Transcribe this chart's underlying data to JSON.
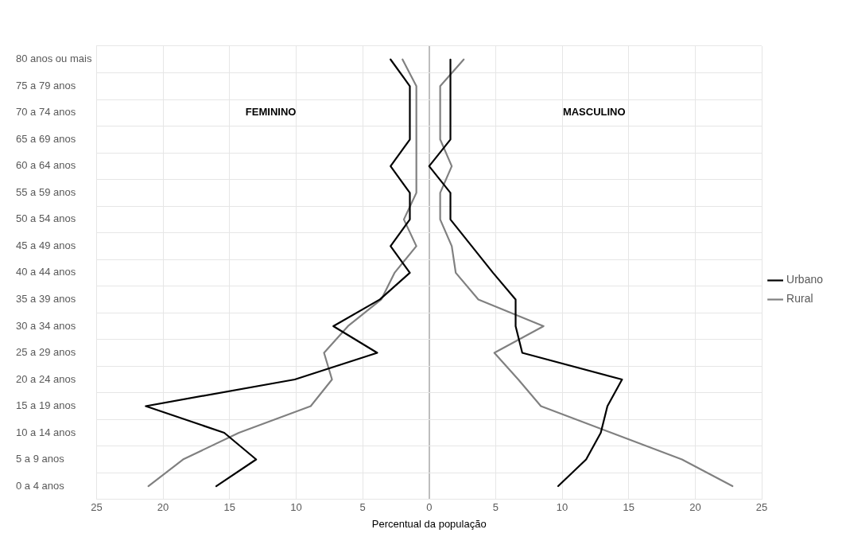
{
  "chart_data": {
    "type": "line",
    "orientation": "horizontal",
    "xlabel": "Percentual da população",
    "categories": [
      "80 anos ou mais",
      "75 a 79 anos",
      "70 a 74 anos",
      "65 a 69 anos",
      "60 a 64 anos",
      "55 a 59 anos",
      "50 a 54 anos",
      "45 a 49 anos",
      "40 a 44 anos",
      "35 a 39 anos",
      "30 a 34 anos",
      "25 a 29 anos",
      "20 a 24 anos",
      "15 a 19 anos",
      "10 a 14 anos",
      "5 a 9 anos",
      "0 a 4 anos"
    ],
    "series": [
      {
        "color": "#000000",
        "values": [
          -2.9,
          -1.45,
          -1.45,
          -1.45,
          -2.9,
          -1.45,
          -1.45,
          -2.9,
          -1.45,
          -3.7,
          -7.2,
          -3.9,
          -10.1,
          -21.3,
          -15.4,
          -13.0,
          -16.0
        ]
      },
      {
        "color": "#808080",
        "values": [
          -2.0,
          -0.96,
          -0.96,
          -0.96,
          -0.96,
          -0.96,
          -1.9,
          -0.96,
          -2.6,
          -3.6,
          -6.1,
          -7.9,
          -7.3,
          -8.9,
          -14.3,
          -18.5,
          -21.1
        ]
      },
      {
        "name": "Urbano",
        "color": "#000000",
        "values": [
          1.6,
          1.6,
          1.6,
          1.6,
          0,
          1.6,
          1.6,
          3.2,
          4.8,
          6.5,
          6.5,
          7.0,
          14.5,
          13.4,
          12.9,
          11.8,
          9.7
        ]
      },
      {
        "name": "Rural",
        "color": "#808080",
        "values": [
          2.6,
          0.83,
          0.83,
          0.83,
          1.7,
          0.83,
          0.83,
          1.7,
          2.0,
          3.7,
          8.6,
          4.9,
          6.7,
          8.4,
          13.7,
          19.0,
          22.8
        ]
      }
    ],
    "xlim": [
      -25,
      25
    ],
    "xticks": [
      {
        "value": -25,
        "label": "25"
      },
      {
        "value": -20,
        "label": "20"
      },
      {
        "value": -15,
        "label": "15"
      },
      {
        "value": -10,
        "label": "10"
      },
      {
        "value": -5,
        "label": "5"
      },
      0,
      5,
      10,
      15,
      20,
      25
    ],
    "annotations": [
      "FEMININO",
      "MASCULINO"
    ],
    "grid": true,
    "legend": "right",
    "marker": "none",
    "line_style": "solid"
  }
}
